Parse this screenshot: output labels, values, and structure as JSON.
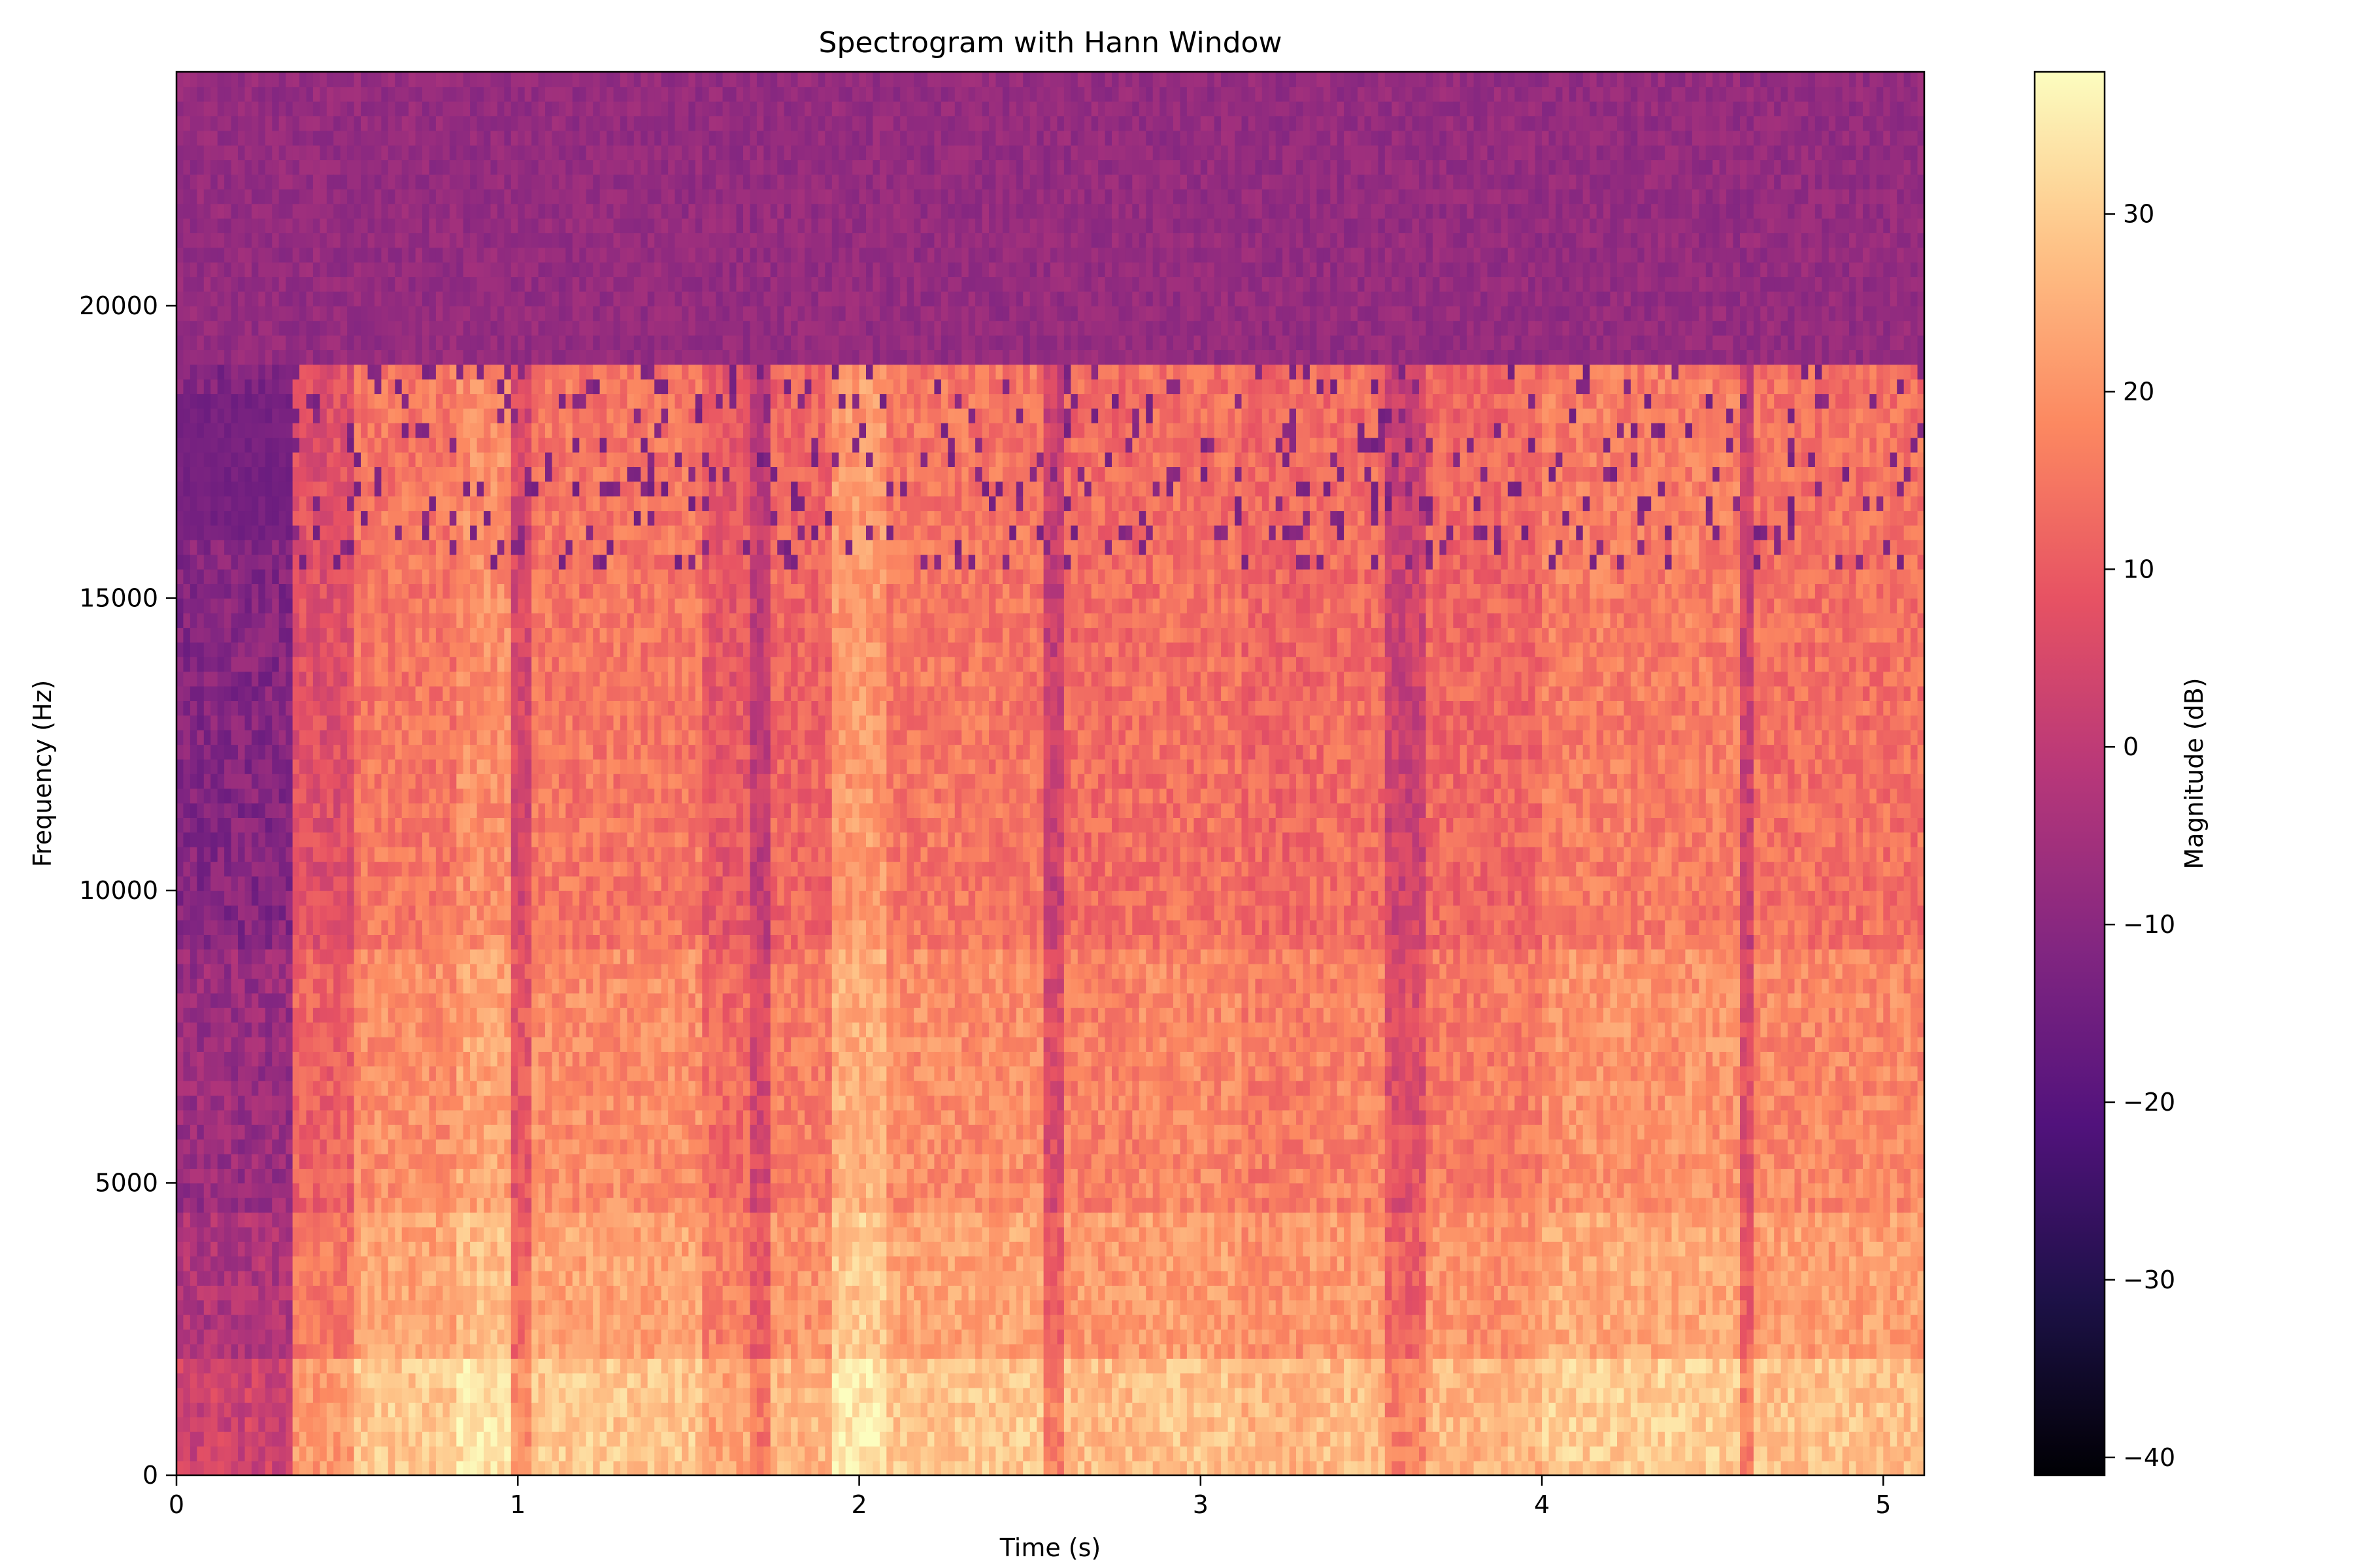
{
  "chart_data": {
    "type": "heatmap",
    "title": "Spectrogram with Hann Window",
    "xlabel": "Time (s)",
    "ylabel": "Frequency (Hz)",
    "xlim": [
      0,
      5.12
    ],
    "ylim": [
      0,
      24000
    ],
    "x_ticks": [
      0,
      1,
      2,
      3,
      4,
      5
    ],
    "y_ticks": [
      0,
      5000,
      10000,
      15000,
      20000
    ],
    "colormap": "magma",
    "colorbar": {
      "label": "Magnitude (dB)",
      "range": [
        -41,
        38
      ],
      "ticks": [
        -40,
        -30,
        -20,
        -10,
        0,
        10,
        20,
        30
      ]
    },
    "cutoff_hz": 19000,
    "time_segments": [
      {
        "t": [
          0.0,
          0.35
        ],
        "level_db": -8
      },
      {
        "t": [
          0.35,
          0.52
        ],
        "level_db": 10
      },
      {
        "t": [
          0.52,
          0.83
        ],
        "level_db": 18
      },
      {
        "t": [
          0.83,
          0.98
        ],
        "level_db": 22
      },
      {
        "t": [
          0.98,
          1.05
        ],
        "level_db": 8
      },
      {
        "t": [
          1.05,
          1.55
        ],
        "level_db": 18
      },
      {
        "t": [
          1.55,
          1.68
        ],
        "level_db": 12
      },
      {
        "t": [
          1.68,
          1.75
        ],
        "level_db": 4
      },
      {
        "t": [
          1.75,
          1.92
        ],
        "level_db": 15
      },
      {
        "t": [
          1.92,
          2.08
        ],
        "level_db": 24
      },
      {
        "t": [
          2.08,
          2.55
        ],
        "level_db": 18
      },
      {
        "t": [
          2.55,
          2.6
        ],
        "level_db": 5
      },
      {
        "t": [
          2.6,
          2.82
        ],
        "level_db": 16
      },
      {
        "t": [
          2.82,
          3.13
        ],
        "level_db": 17
      },
      {
        "t": [
          3.13,
          3.32
        ],
        "level_db": 15
      },
      {
        "t": [
          3.32,
          3.55
        ],
        "level_db": 16
      },
      {
        "t": [
          3.55,
          3.66
        ],
        "level_db": 6
      },
      {
        "t": [
          3.66,
          4.0
        ],
        "level_db": 15
      },
      {
        "t": [
          4.0,
          4.58
        ],
        "level_db": 19
      },
      {
        "t": [
          4.58,
          4.62
        ],
        "level_db": 6
      },
      {
        "t": [
          4.62,
          5.12
        ],
        "level_db": 17
      }
    ],
    "colors": {
      "magma": [
        "#000004",
        "#1d1147",
        "#51127c",
        "#822681",
        "#b73779",
        "#e75263",
        "#fc8961",
        "#fec287",
        "#fcfdbf"
      ]
    }
  }
}
